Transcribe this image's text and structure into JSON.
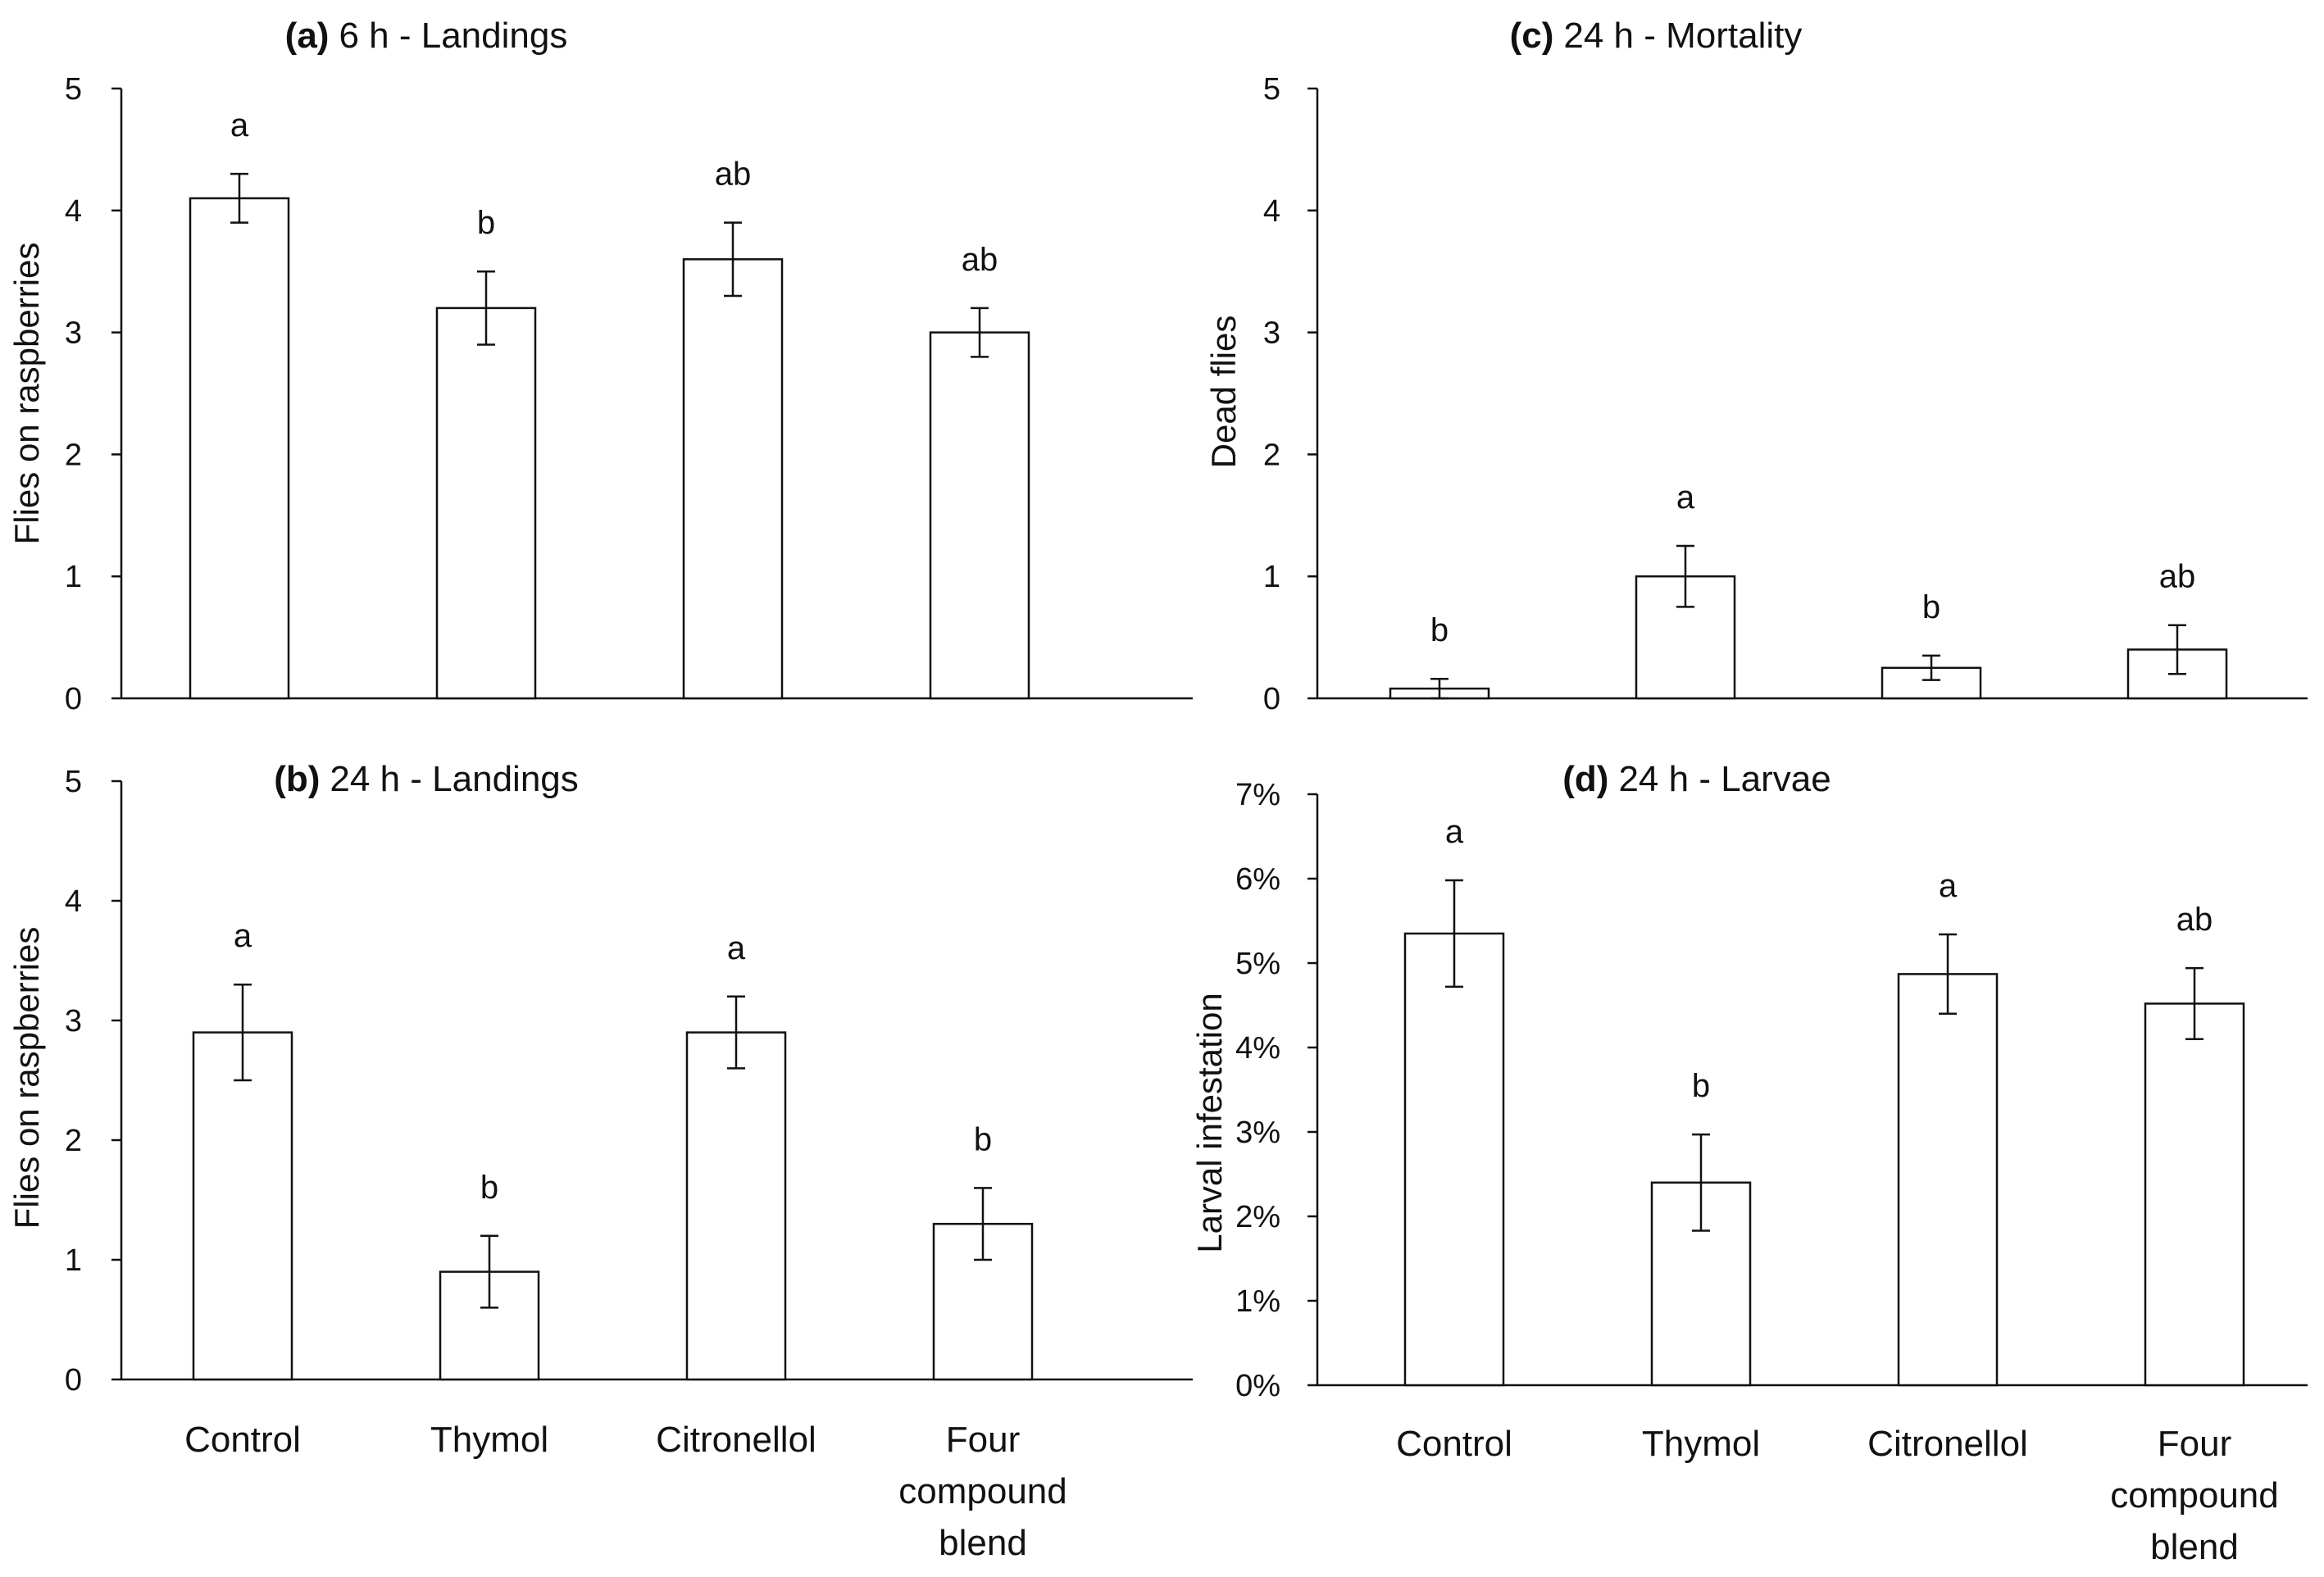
{
  "figure": {
    "categories": [
      "Control",
      "Thymol",
      "Citronellol",
      "Four compound blend"
    ],
    "category_label_lines": [
      [
        "Control"
      ],
      [
        "Thymol"
      ],
      [
        "Citronellol"
      ],
      [
        "Four",
        "compound",
        "blend"
      ]
    ],
    "bar_fill": "#ffffff",
    "ink_color": "#111111"
  },
  "chart_data": [
    {
      "type": "bar",
      "panel_letter": "(a)",
      "title_text": "6 h - Landings",
      "ylabel": "Flies on raspberries",
      "ylim": [
        0,
        5
      ],
      "yticks": [
        "0",
        "1",
        "2",
        "3",
        "4",
        "5"
      ],
      "categories": [
        "Control",
        "Thymol",
        "Citronellol",
        "Four compound blend"
      ],
      "values": [
        4.1,
        3.2,
        3.6,
        3.0
      ],
      "errors": [
        0.2,
        0.3,
        0.3,
        0.2
      ],
      "significance": [
        "a",
        "b",
        "ab",
        "ab"
      ]
    },
    {
      "type": "bar",
      "panel_letter": "(b)",
      "title_text": "24 h - Landings",
      "ylabel": "Flies on raspberries",
      "ylim": [
        0,
        5
      ],
      "yticks": [
        "0",
        "1",
        "2",
        "3",
        "4",
        "5"
      ],
      "categories": [
        "Control",
        "Thymol",
        "Citronellol",
        "Four compound blend"
      ],
      "values": [
        2.9,
        0.9,
        2.9,
        1.3
      ],
      "errors": [
        0.4,
        0.3,
        0.3,
        0.3
      ],
      "significance": [
        "a",
        "b",
        "a",
        "b"
      ]
    },
    {
      "type": "bar",
      "panel_letter": "(c)",
      "title_text": "24 h - Mortality",
      "ylabel": "Dead flies",
      "ylim": [
        0,
        5
      ],
      "yticks": [
        "0",
        "1",
        "2",
        "3",
        "4",
        "5"
      ],
      "categories": [
        "Control",
        "Thymol",
        "Citronellol",
        "Four compound blend"
      ],
      "values": [
        0.08,
        1.0,
        0.25,
        0.4
      ],
      "errors": [
        0.08,
        0.25,
        0.1,
        0.2
      ],
      "significance": [
        "b",
        "a",
        "b",
        "ab"
      ]
    },
    {
      "type": "bar",
      "panel_letter": "(d)",
      "title_text": "24 h - Larvae",
      "ylabel": "Larval infestation",
      "ylim": [
        0,
        7
      ],
      "yticks": [
        "0%",
        "1%",
        "2%",
        "3%",
        "4%",
        "5%",
        "6%",
        "7%"
      ],
      "categories": [
        "Control",
        "Thymol",
        "Citronellol",
        "Four compound blend"
      ],
      "values": [
        5.35,
        2.4,
        4.87,
        4.52
      ],
      "errors": [
        0.63,
        0.57,
        0.47,
        0.42
      ],
      "significance": [
        "a",
        "b",
        "a",
        "ab"
      ]
    }
  ]
}
